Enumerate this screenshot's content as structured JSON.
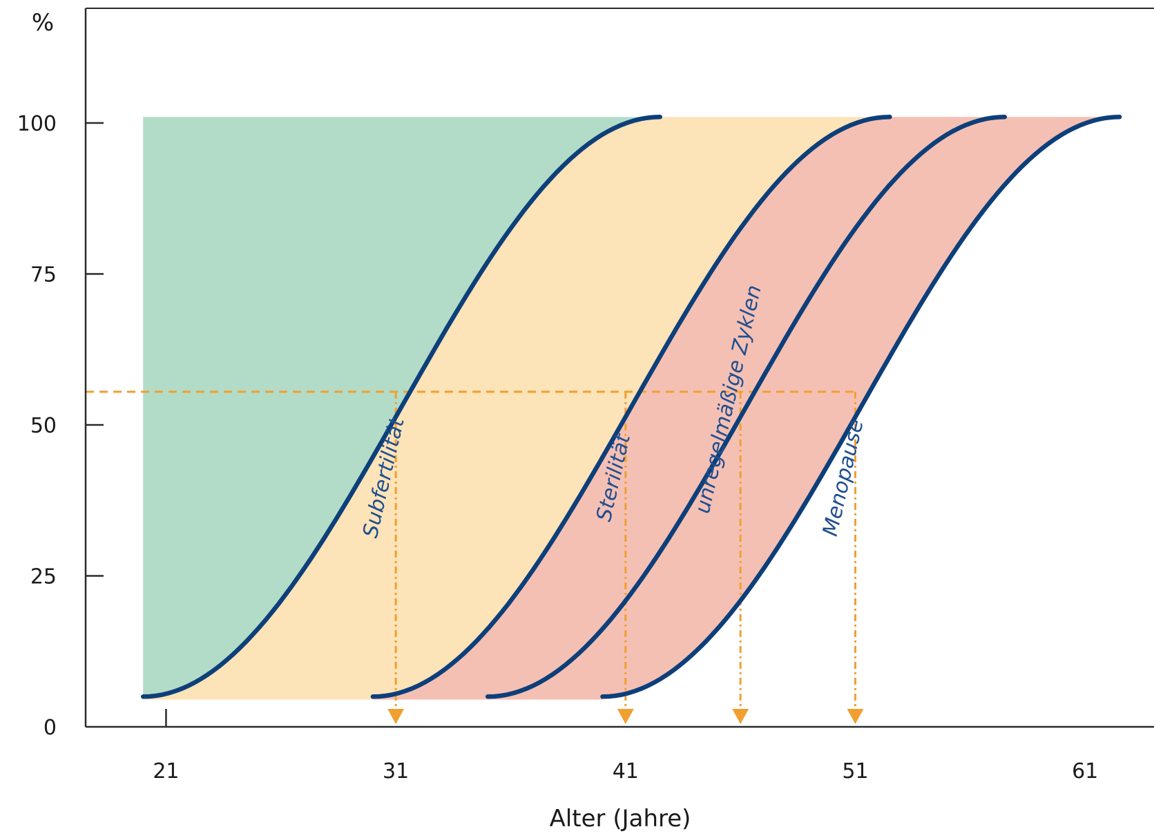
{
  "chart_data": {
    "type": "line",
    "xlabel": "Alter (Jahre)",
    "ylabel": "%",
    "xlim": [
      17.5,
      64
    ],
    "ylim": [
      0,
      119
    ],
    "x_ticks": [
      21,
      31,
      41,
      51,
      61
    ],
    "y_ticks": [
      0,
      25,
      50,
      75,
      100
    ],
    "grid": false,
    "colors": {
      "curve": "#0d3f7a",
      "guide": "#f0a030",
      "fill_fertile": "#b3dcc8",
      "fill_subfertile": "#fde3b8",
      "fill_sterile": "#f5c0b4"
    },
    "series": [
      {
        "name": "Subfertilität",
        "x_start": 20,
        "x_end": 42.5,
        "y_start": 5,
        "y_end": 101,
        "x_at_guide": 31
      },
      {
        "name": "Sterilität",
        "x_start": 30,
        "x_end": 52.5,
        "y_start": 5,
        "y_end": 101,
        "x_at_guide": 41
      },
      {
        "name": "unregelmäßige Zyklen",
        "x_start": 35,
        "x_end": 57.5,
        "y_start": 5,
        "y_end": 101,
        "x_at_guide": 46
      },
      {
        "name": "Menopause",
        "x_start": 40,
        "x_end": 62.5,
        "y_start": 5,
        "y_end": 101,
        "x_at_guide": 51
      }
    ],
    "guide_level": 55.5,
    "fill_top": 101,
    "fill_bottom": 4.5
  }
}
